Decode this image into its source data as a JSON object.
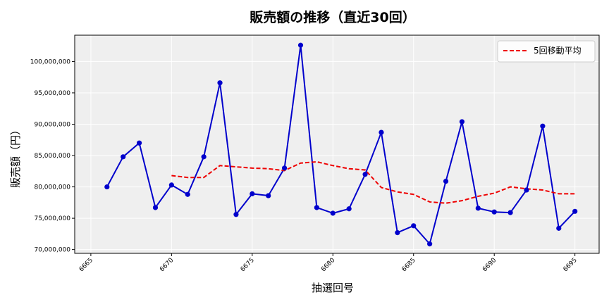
{
  "chart_data": {
    "type": "line",
    "title": "販売額の推移（直近30回）",
    "xlabel": "抽選回号",
    "ylabel": "販売額（円）",
    "xlim": [
      6664.0,
      6696.5
    ],
    "ylim": [
      69400000,
      104200000
    ],
    "x_ticks": [
      "6665",
      "6670",
      "6675",
      "6680",
      "6685",
      "6690",
      "6695"
    ],
    "y_ticks": [
      "70,000,000",
      "75,000,000",
      "80,000,000",
      "85,000,000",
      "90,000,000",
      "95,000,000",
      "100,000,000"
    ],
    "grid": true,
    "legend_position": "top-right",
    "x": [
      6666,
      6667,
      6668,
      6669,
      6670,
      6671,
      6672,
      6673,
      6674,
      6675,
      6676,
      6677,
      6678,
      6679,
      6680,
      6681,
      6682,
      6683,
      6684,
      6685,
      6686,
      6687,
      6688,
      6689,
      6690,
      6691,
      6692,
      6693,
      6694,
      6695
    ],
    "series": [
      {
        "name": "",
        "color": "#0000cc",
        "style": "solid-markers",
        "values": [
          80000000,
          84800000,
          87000000,
          76700000,
          80300000,
          78800000,
          84800000,
          96600000,
          75600000,
          78900000,
          78600000,
          83000000,
          102600000,
          76700000,
          75800000,
          76500000,
          82000000,
          88700000,
          72700000,
          73800000,
          70900000,
          80900000,
          90400000,
          76600000,
          76000000,
          75900000,
          79500000,
          89700000,
          73400000,
          76100000
        ]
      },
      {
        "name": "5回移動平均",
        "color": "#ee0000",
        "style": "dashed",
        "x": [
          6670,
          6671,
          6672,
          6673,
          6674,
          6675,
          6676,
          6677,
          6678,
          6679,
          6680,
          6681,
          6682,
          6683,
          6684,
          6685,
          6686,
          6687,
          6688,
          6689,
          6690,
          6691,
          6692,
          6693,
          6694,
          6695
        ],
        "values": [
          81800000,
          81500000,
          81500000,
          83400000,
          83200000,
          83000000,
          82900000,
          82600000,
          83800000,
          84000000,
          83400000,
          82900000,
          82700000,
          79900000,
          79200000,
          78800000,
          77600000,
          77400000,
          77800000,
          78500000,
          79000000,
          80000000,
          79700000,
          79500000,
          78900000,
          78900000
        ]
      }
    ]
  }
}
